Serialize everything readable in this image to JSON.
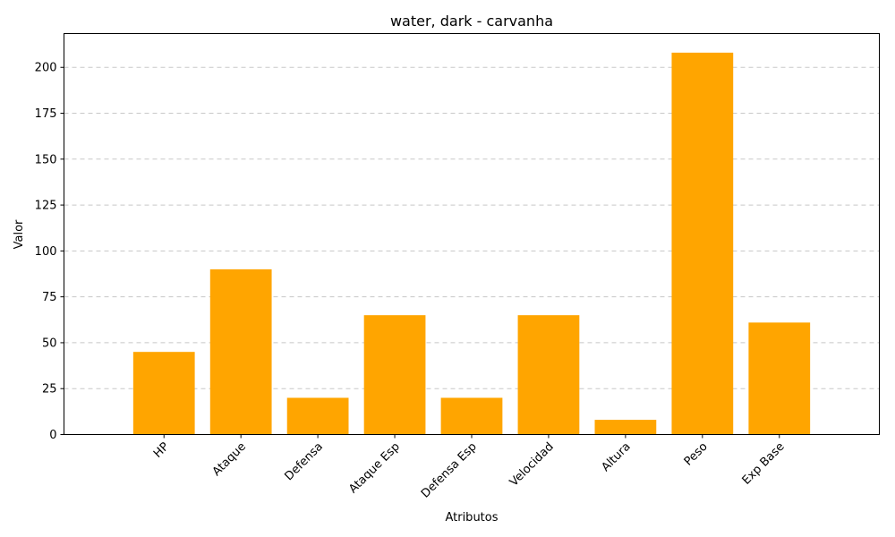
{
  "chart_data": {
    "type": "bar",
    "title": "water, dark - carvanha",
    "xlabel": "Atributos",
    "ylabel": "Valor",
    "categories": [
      "HP",
      "Ataque",
      "Defensa",
      "Ataque Esp",
      "Defensa Esp",
      "Velocidad",
      "Altura",
      "Peso",
      "Exp Base"
    ],
    "values": [
      45,
      90,
      20,
      65,
      20,
      65,
      8,
      208,
      61
    ],
    "ylim": [
      0,
      218.4
    ],
    "yticks": [
      0,
      25,
      50,
      75,
      100,
      125,
      150,
      175,
      200
    ],
    "grid": "y, dashed",
    "bar_color": "#ffa500",
    "xtick_rotation": 45
  }
}
